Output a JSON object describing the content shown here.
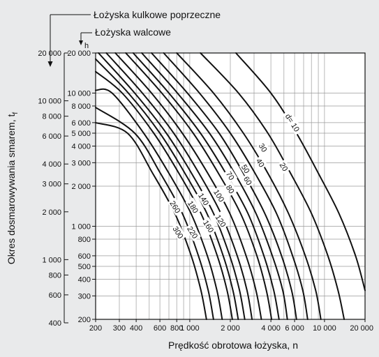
{
  "colors": {
    "background": "#e9eaeb",
    "plot_area": "#ffffff",
    "grid": "#9a9a9a",
    "curve": "#111111"
  },
  "chart_data": {
    "type": "line",
    "title": "",
    "xlabel": "Prędkość obrotowa łożyska, n",
    "ylabel": "Okres dosmarowywania smarem, t",
    "ylabel_subscript": "f",
    "x_scale": "log",
    "y_scale": "log",
    "xlim": [
      200,
      20000
    ],
    "ylim_inner": [
      200,
      20000
    ],
    "inner_axis_unit": "h",
    "x_ticks": [
      {
        "value": 200,
        "label": "200"
      },
      {
        "value": 300,
        "label": "300"
      },
      {
        "value": 400,
        "label": "400"
      },
      {
        "value": 600,
        "label": "600"
      },
      {
        "value": 800,
        "label": "800"
      },
      {
        "value": 1000,
        "label": "1 000"
      },
      {
        "value": 2000,
        "label": "2 000"
      },
      {
        "value": 4000,
        "label": "4 000"
      },
      {
        "value": 6000,
        "label": "6 000"
      },
      {
        "value": 10000,
        "label": "10 000"
      },
      {
        "value": 20000,
        "label": "20 000"
      }
    ],
    "x_minor_gridlines": [
      500,
      700,
      900,
      3000,
      5000,
      7000,
      8000,
      9000
    ],
    "inner_y_ticks": [
      {
        "value": 20000,
        "label": "20 000"
      },
      {
        "value": 10000,
        "label": "10 000"
      },
      {
        "value": 8000,
        "label": "8 000"
      },
      {
        "value": 6000,
        "label": "6 000"
      },
      {
        "value": 5000,
        "label": "5 000"
      },
      {
        "value": 4000,
        "label": "4 000"
      },
      {
        "value": 3000,
        "label": "3 000"
      },
      {
        "value": 2000,
        "label": "2 000"
      },
      {
        "value": 1000,
        "label": "1 000"
      },
      {
        "value": 800,
        "label": "800"
      },
      {
        "value": 600,
        "label": "600"
      },
      {
        "value": 500,
        "label": "500"
      },
      {
        "value": 400,
        "label": "400"
      },
      {
        "value": 300,
        "label": "300"
      },
      {
        "value": 200,
        "label": "200"
      }
    ],
    "outer_y_ticks": [
      {
        "value": 20000,
        "label": "20 000"
      },
      {
        "value": 10000,
        "label": "10 000"
      },
      {
        "value": 8000,
        "label": "8 000"
      },
      {
        "value": 6000,
        "label": "6 000"
      },
      {
        "value": 4000,
        "label": "4 000"
      },
      {
        "value": 3000,
        "label": "3 000"
      },
      {
        "value": 2000,
        "label": "2 000"
      },
      {
        "value": 1000,
        "label": "1 000"
      },
      {
        "value": 800,
        "label": "800"
      },
      {
        "value": 600,
        "label": "600"
      },
      {
        "value": 400,
        "label": "400"
      }
    ],
    "outer_scale_label": "Łożyska kulkowe poprzeczne",
    "inner_scale_label": "Łożyska walcowe",
    "grid": true,
    "series": [
      {
        "label": "d= 10",
        "points": [
          [
            2200,
            20000
          ],
          [
            4000,
            10000
          ],
          [
            6200,
            5000
          ],
          [
            9000,
            2500
          ],
          [
            12800,
            1250
          ],
          [
            17000,
            600
          ],
          [
            20000,
            330
          ]
        ],
        "label_at": [
          5800,
          6000
        ]
      },
      {
        "label": "20",
        "points": [
          [
            1200,
            20000
          ],
          [
            2300,
            10000
          ],
          [
            3800,
            5000
          ],
          [
            5600,
            2500
          ],
          [
            8000,
            1250
          ],
          [
            10600,
            600
          ],
          [
            12600,
            330
          ],
          [
            14000,
            200
          ]
        ],
        "label_at": [
          5000,
          2800
        ]
      },
      {
        "label": "30",
        "points": [
          [
            800,
            20000
          ],
          [
            1500,
            10000
          ],
          [
            2500,
            5000
          ],
          [
            3800,
            2500
          ],
          [
            5400,
            1250
          ],
          [
            7200,
            600
          ],
          [
            8600,
            330
          ],
          [
            9400,
            200
          ]
        ],
        "label_at": [
          3500,
          3900
        ]
      },
      {
        "label": "40",
        "points": [
          [
            640,
            20000
          ],
          [
            1180,
            10000
          ],
          [
            2000,
            5000
          ],
          [
            3050,
            2500
          ],
          [
            4400,
            1250
          ],
          [
            5800,
            600
          ],
          [
            6900,
            330
          ],
          [
            7500,
            200
          ]
        ],
        "label_at": [
          3350,
          3000
        ]
      },
      {
        "label": "50",
        "points": [
          [
            520,
            20000
          ],
          [
            960,
            10000
          ],
          [
            1650,
            5000
          ],
          [
            2500,
            2500
          ],
          [
            3600,
            1250
          ],
          [
            4800,
            600
          ],
          [
            5700,
            330
          ],
          [
            6200,
            200
          ]
        ],
        "label_at": [
          2600,
          2700
        ]
      },
      {
        "label": "60",
        "points": [
          [
            440,
            20000
          ],
          [
            810,
            10000
          ],
          [
            1400,
            5000
          ],
          [
            2150,
            2500
          ],
          [
            3100,
            1250
          ],
          [
            4100,
            600
          ],
          [
            4900,
            330
          ],
          [
            5300,
            200
          ]
        ],
        "label_at": [
          2700,
          2200
        ]
      },
      {
        "label": "70",
        "points": [
          [
            380,
            20000
          ],
          [
            700,
            10000
          ],
          [
            1200,
            5000
          ],
          [
            1850,
            2500
          ],
          [
            2700,
            1250
          ],
          [
            3550,
            600
          ],
          [
            4200,
            330
          ],
          [
            4600,
            200
          ]
        ],
        "label_at": [
          2000,
          2400
        ]
      },
      {
        "label": "80",
        "points": [
          [
            335,
            20000
          ],
          [
            620,
            10000
          ],
          [
            1060,
            5000
          ],
          [
            1630,
            2500
          ],
          [
            2380,
            1250
          ],
          [
            3150,
            600
          ],
          [
            3700,
            330
          ],
          [
            4050,
            200
          ]
        ],
        "label_at": [
          2000,
          1900
        ]
      },
      {
        "label": "100",
        "points": [
          [
            280,
            20000
          ],
          [
            520,
            10000
          ],
          [
            880,
            5000
          ],
          [
            1360,
            2500
          ],
          [
            1980,
            1250
          ],
          [
            2620,
            600
          ],
          [
            3100,
            330
          ],
          [
            3400,
            200
          ]
        ],
        "label_at": [
          1650,
          1700
        ]
      },
      {
        "label": "120",
        "points": [
          [
            240,
            20000
          ],
          [
            445,
            10000
          ],
          [
            760,
            5000
          ],
          [
            1170,
            2500
          ],
          [
            1700,
            1250
          ],
          [
            2250,
            600
          ],
          [
            2660,
            330
          ],
          [
            2900,
            200
          ]
        ],
        "label_at": [
          1700,
          1100
        ]
      },
      {
        "label": "140",
        "points": [
          [
            210,
            20000
          ],
          [
            390,
            10000
          ],
          [
            670,
            5000
          ],
          [
            1030,
            2500
          ],
          [
            1500,
            1250
          ],
          [
            1980,
            600
          ],
          [
            2340,
            330
          ],
          [
            2560,
            200
          ]
        ],
        "label_at": [
          1270,
          1600
        ]
      },
      {
        "label": "160",
        "points": [
          [
            200,
            18000
          ],
          [
            350,
            10000
          ],
          [
            600,
            5000
          ],
          [
            920,
            2500
          ],
          [
            1340,
            1250
          ],
          [
            1770,
            600
          ],
          [
            2090,
            330
          ],
          [
            2290,
            200
          ]
        ],
        "label_at": [
          1380,
          1000
        ]
      },
      {
        "label": "180",
        "points": [
          [
            200,
            14500
          ],
          [
            315,
            10000
          ],
          [
            540,
            5000
          ],
          [
            830,
            2500
          ],
          [
            1210,
            1250
          ],
          [
            1600,
            600
          ],
          [
            1890,
            330
          ],
          [
            2070,
            200
          ]
        ],
        "label_at": [
          1060,
          1400
        ]
      },
      {
        "label": "220",
        "points": [
          [
            200,
            10500
          ],
          [
            265,
            10000
          ],
          [
            455,
            5000
          ],
          [
            700,
            2500
          ],
          [
            1020,
            1250
          ],
          [
            1350,
            600
          ],
          [
            1590,
            330
          ],
          [
            1740,
            200
          ]
        ],
        "label_at": [
          1050,
          900
        ]
      },
      {
        "label": "260",
        "points": [
          [
            200,
            7800
          ],
          [
            390,
            5000
          ],
          [
            605,
            2500
          ],
          [
            880,
            1250
          ],
          [
            1160,
            600
          ],
          [
            1370,
            330
          ],
          [
            1500,
            200
          ]
        ],
        "label_at": [
          780,
          1400
        ]
      },
      {
        "label": "300",
        "points": [
          [
            200,
            6000
          ],
          [
            345,
            5000
          ],
          [
            530,
            2500
          ],
          [
            775,
            1250
          ],
          [
            1025,
            600
          ],
          [
            1210,
            330
          ],
          [
            1330,
            200
          ]
        ],
        "label_at": [
          820,
          900
        ]
      }
    ]
  }
}
